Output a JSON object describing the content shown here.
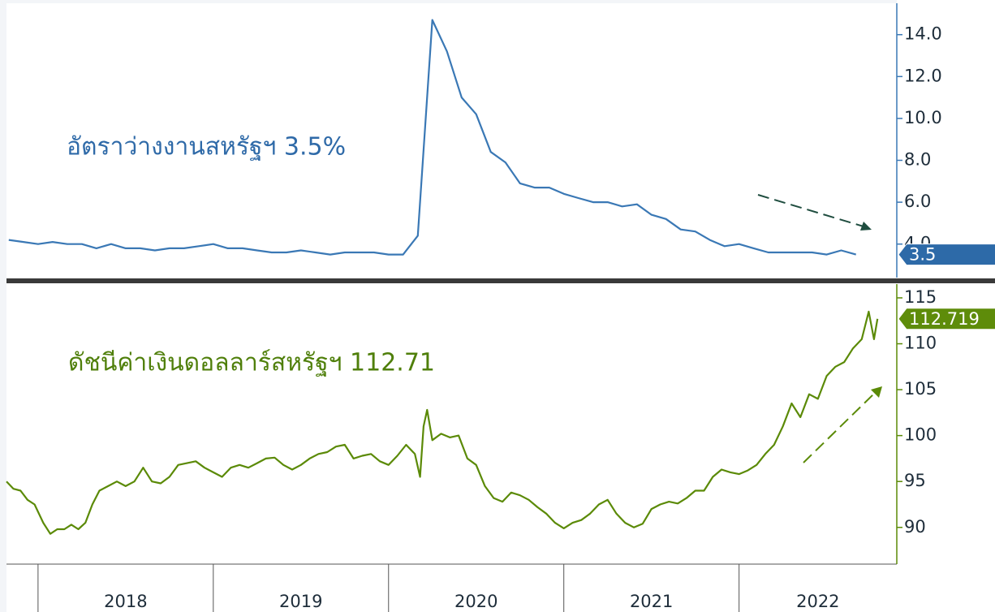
{
  "chart_data": [
    {
      "type": "line",
      "annotation": "อัตราว่างงานสหรัฐฯ 3.5%",
      "color": "#3a78b5",
      "xlim": [
        2017.82,
        2022.9
      ],
      "ylim": [
        2.4,
        15.5
      ],
      "yticks": [
        {
          "value": 4,
          "label": "4.0"
        },
        {
          "value": 6,
          "label": "6.0"
        },
        {
          "value": 8,
          "label": "8.0"
        },
        {
          "value": 10,
          "label": "10.0"
        },
        {
          "value": 12,
          "label": "12.0"
        },
        {
          "value": 14,
          "label": "14.0"
        }
      ],
      "x": [
        2017.833,
        2017.917,
        2018.0,
        2018.083,
        2018.167,
        2018.25,
        2018.333,
        2018.417,
        2018.5,
        2018.583,
        2018.667,
        2018.75,
        2018.833,
        2018.917,
        2019.0,
        2019.083,
        2019.167,
        2019.25,
        2019.333,
        2019.417,
        2019.5,
        2019.583,
        2019.667,
        2019.75,
        2019.833,
        2019.917,
        2020.0,
        2020.083,
        2020.167,
        2020.25,
        2020.333,
        2020.417,
        2020.5,
        2020.583,
        2020.667,
        2020.75,
        2020.833,
        2020.917,
        2021.0,
        2021.083,
        2021.167,
        2021.25,
        2021.333,
        2021.417,
        2021.5,
        2021.583,
        2021.667,
        2021.75,
        2021.833,
        2021.917,
        2022.0,
        2022.083,
        2022.167,
        2022.25,
        2022.333,
        2022.417,
        2022.5,
        2022.583,
        2022.667
      ],
      "values": [
        4.2,
        4.1,
        4.0,
        4.1,
        4.0,
        4.0,
        3.8,
        4.0,
        3.8,
        3.8,
        3.7,
        3.8,
        3.8,
        3.9,
        4.0,
        3.8,
        3.8,
        3.7,
        3.6,
        3.6,
        3.7,
        3.6,
        3.5,
        3.6,
        3.6,
        3.6,
        3.5,
        3.5,
        4.4,
        14.7,
        13.2,
        11.0,
        10.2,
        8.4,
        7.9,
        6.9,
        6.7,
        6.7,
        6.4,
        6.2,
        6.0,
        6.0,
        5.8,
        5.9,
        5.4,
        5.2,
        4.7,
        4.6,
        4.2,
        3.9,
        4.0,
        3.8,
        3.6,
        3.6,
        3.6,
        3.6,
        3.5,
        3.7,
        3.5
      ]
    },
    {
      "type": "line",
      "annotation": "ดัชนีค่าเงินดอลลาร์สหรัฐฯ 112.71",
      "color": "#5b8a07",
      "xlim": [
        2017.82,
        2022.9
      ],
      "ylim": [
        86,
        116.5
      ],
      "yticks": [
        90,
        95,
        100,
        105,
        110,
        115
      ],
      "xticks": [
        2018,
        2019,
        2020,
        2021,
        2022
      ],
      "x": [
        2017.82,
        2017.86,
        2017.9,
        2017.94,
        2017.98,
        2018.03,
        2018.07,
        2018.11,
        2018.15,
        2018.19,
        2018.23,
        2018.27,
        2018.31,
        2018.35,
        2018.4,
        2018.45,
        2018.5,
        2018.55,
        2018.6,
        2018.65,
        2018.7,
        2018.75,
        2018.8,
        2018.85,
        2018.9,
        2018.95,
        2019.0,
        2019.05,
        2019.1,
        2019.15,
        2019.2,
        2019.25,
        2019.3,
        2019.35,
        2019.4,
        2019.45,
        2019.5,
        2019.55,
        2019.6,
        2019.65,
        2019.7,
        2019.75,
        2019.8,
        2019.85,
        2019.9,
        2019.95,
        2020.0,
        2020.05,
        2020.1,
        2020.15,
        2020.18,
        2020.2,
        2020.22,
        2020.25,
        2020.3,
        2020.35,
        2020.4,
        2020.45,
        2020.5,
        2020.55,
        2020.6,
        2020.65,
        2020.7,
        2020.75,
        2020.8,
        2020.85,
        2020.9,
        2020.95,
        2021.0,
        2021.05,
        2021.1,
        2021.15,
        2021.2,
        2021.25,
        2021.3,
        2021.35,
        2021.4,
        2021.45,
        2021.5,
        2021.55,
        2021.6,
        2021.65,
        2021.7,
        2021.75,
        2021.8,
        2021.85,
        2021.9,
        2021.95,
        2022.0,
        2022.05,
        2022.1,
        2022.15,
        2022.2,
        2022.25,
        2022.3,
        2022.35,
        2022.4,
        2022.45,
        2022.5,
        2022.55,
        2022.6,
        2022.65,
        2022.7,
        2022.74,
        2022.77,
        2022.79
      ],
      "values": [
        95.0,
        94.2,
        94.0,
        93.0,
        92.5,
        90.5,
        89.3,
        89.8,
        89.8,
        90.3,
        89.8,
        90.5,
        92.5,
        94.0,
        94.5,
        95.0,
        94.5,
        95.0,
        96.5,
        95.0,
        94.8,
        95.5,
        96.8,
        97.0,
        97.2,
        96.5,
        96.0,
        95.5,
        96.5,
        96.8,
        96.5,
        97.0,
        97.5,
        97.6,
        96.8,
        96.3,
        96.8,
        97.5,
        98.0,
        98.2,
        98.8,
        99.0,
        97.5,
        97.8,
        98.0,
        97.2,
        96.8,
        97.8,
        99.0,
        98.0,
        95.5,
        101.0,
        102.8,
        99.5,
        100.2,
        99.8,
        100.0,
        97.5,
        96.8,
        94.5,
        93.2,
        92.8,
        93.8,
        93.5,
        93.0,
        92.2,
        91.5,
        90.5,
        89.9,
        90.5,
        90.8,
        91.5,
        92.5,
        93.0,
        91.5,
        90.5,
        90.0,
        90.4,
        92.0,
        92.5,
        92.8,
        92.6,
        93.2,
        94.0,
        94.0,
        95.5,
        96.3,
        96.0,
        95.8,
        96.2,
        96.8,
        98.0,
        99.0,
        101.0,
        103.5,
        102.0,
        104.5,
        104.0,
        106.5,
        107.5,
        108.0,
        109.5,
        110.5,
        113.5,
        110.5,
        112.719
      ]
    }
  ]
}
